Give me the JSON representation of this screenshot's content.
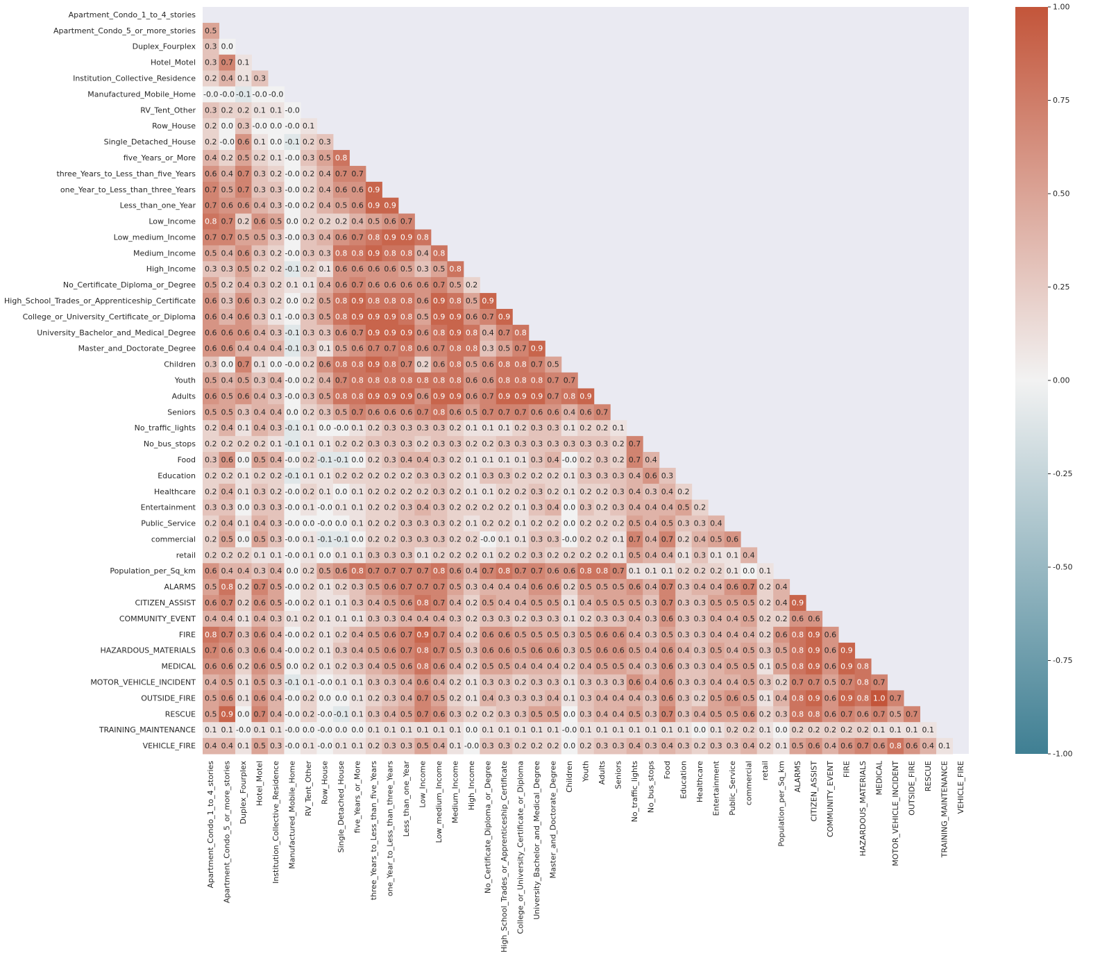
{
  "chart_data": {
    "type": "heatmap",
    "variables": [
      "Apartment_Condo_1_to_4_stories",
      "Apartment_Condo_5_or_more_stories",
      "Duplex_Fourplex",
      "Hotel_Motel",
      "Institution_Collective_Residence",
      "Manufactured_Mobile_Home",
      "RV_Tent_Other",
      "Row_House",
      "Single_Detached_House",
      "five_Years_or_More",
      "three_Years_to_Less_than_five_Years",
      "one_Year_to_Less_than_three_Years",
      "Less_than_one_Year",
      "Low_Income",
      "Low_medium_Income",
      "Medium_Income",
      "High_Income",
      "No_Certificate_Diploma_or_Degree",
      "High_School_Trades_or_Apprenticeship_Certificate",
      "College_or_University_Certificate_or_Diploma",
      "University_Bachelor_and_Medical_Degree",
      "Master_and_Doctorate_Degree",
      "Children",
      "Youth",
      "Adults",
      "Seniors",
      "No_traffic_lights",
      "No_bus_stops",
      "Food",
      "Education",
      "Healthcare",
      "Entertainment",
      "Public_Service",
      "commercial",
      "retail",
      "Population_per_Sq_km",
      "ALARMS",
      "CITIZEN_ASSIST",
      "COMMUNITY_EVENT",
      "FIRE",
      "HAZARDOUS_MATERIALS",
      "MEDICAL",
      "MOTOR_VEHICLE_INCIDENT",
      "OUTSIDE_FIRE",
      "RESCUE",
      "TRAINING_MAINTENANCE",
      "VEHICLE_FIRE"
    ],
    "rows": [
      [],
      [
        "0.5"
      ],
      [
        "0.3",
        "0.0"
      ],
      [
        "0.3",
        "0.7",
        "0.1"
      ],
      [
        "0.2",
        "0.4",
        "0.1",
        "0.3"
      ],
      [
        "-0.0",
        "-0.0",
        "-0.1",
        "-0.0",
        "-0.0"
      ],
      [
        "0.3",
        "0.2",
        "0.2",
        "0.1",
        "0.1",
        "-0.0"
      ],
      [
        "0.2",
        "0.0",
        "0.3",
        "-0.0",
        "0.0",
        "-0.0",
        "0.1"
      ],
      [
        "0.2",
        "-0.0",
        "0.6",
        "0.1",
        "0.0",
        "-0.1",
        "0.2",
        "0.3"
      ],
      [
        "0.4",
        "0.2",
        "0.5",
        "0.2",
        "0.1",
        "-0.0",
        "0.3",
        "0.5",
        "0.8"
      ],
      [
        "0.6",
        "0.4",
        "0.7",
        "0.3",
        "0.2",
        "-0.0",
        "0.2",
        "0.4",
        "0.7",
        "0.7"
      ],
      [
        "0.7",
        "0.5",
        "0.7",
        "0.3",
        "0.3",
        "-0.0",
        "0.2",
        "0.4",
        "0.6",
        "0.6",
        "0.9"
      ],
      [
        "0.7",
        "0.6",
        "0.6",
        "0.4",
        "0.3",
        "-0.0",
        "0.2",
        "0.4",
        "0.5",
        "0.6",
        "0.9",
        "0.9"
      ],
      [
        "0.8",
        "0.7",
        "0.2",
        "0.6",
        "0.5",
        "0.0",
        "0.2",
        "0.2",
        "0.2",
        "0.4",
        "0.5",
        "0.6",
        "0.7"
      ],
      [
        "0.7",
        "0.7",
        "0.5",
        "0.5",
        "0.3",
        "-0.0",
        "0.3",
        "0.4",
        "0.6",
        "0.7",
        "0.8",
        "0.9",
        "0.9",
        "0.8"
      ],
      [
        "0.5",
        "0.4",
        "0.6",
        "0.3",
        "0.2",
        "-0.0",
        "0.3",
        "0.3",
        "0.8",
        "0.8",
        "0.9",
        "0.8",
        "0.8",
        "0.4",
        "0.8"
      ],
      [
        "0.3",
        "0.3",
        "0.5",
        "0.2",
        "0.2",
        "-0.1",
        "0.2",
        "0.1",
        "0.6",
        "0.6",
        "0.6",
        "0.6",
        "0.5",
        "0.3",
        "0.5",
        "0.8"
      ],
      [
        "0.5",
        "0.2",
        "0.4",
        "0.3",
        "0.2",
        "0.1",
        "0.1",
        "0.4",
        "0.6",
        "0.7",
        "0.6",
        "0.6",
        "0.6",
        "0.6",
        "0.7",
        "0.5",
        "0.2"
      ],
      [
        "0.6",
        "0.3",
        "0.6",
        "0.3",
        "0.2",
        "0.0",
        "0.2",
        "0.5",
        "0.8",
        "0.9",
        "0.8",
        "0.8",
        "0.8",
        "0.6",
        "0.9",
        "0.8",
        "0.5",
        "0.9"
      ],
      [
        "0.6",
        "0.4",
        "0.6",
        "0.3",
        "0.1",
        "-0.0",
        "0.3",
        "0.5",
        "0.8",
        "0.9",
        "0.9",
        "0.9",
        "0.8",
        "0.5",
        "0.9",
        "0.9",
        "0.6",
        "0.7",
        "0.9"
      ],
      [
        "0.6",
        "0.6",
        "0.6",
        "0.4",
        "0.3",
        "-0.1",
        "0.3",
        "0.3",
        "0.6",
        "0.7",
        "0.9",
        "0.9",
        "0.9",
        "0.6",
        "0.8",
        "0.9",
        "0.8",
        "0.4",
        "0.7",
        "0.8"
      ],
      [
        "0.6",
        "0.6",
        "0.4",
        "0.4",
        "0.4",
        "-0.1",
        "0.3",
        "0.1",
        "0.5",
        "0.6",
        "0.7",
        "0.7",
        "0.8",
        "0.6",
        "0.7",
        "0.8",
        "0.8",
        "0.3",
        "0.5",
        "0.7",
        "0.9"
      ],
      [
        "0.3",
        "0.0",
        "0.7",
        "0.1",
        "0.0",
        "-0.0",
        "0.2",
        "0.6",
        "0.8",
        "0.8",
        "0.9",
        "0.8",
        "0.7",
        "0.2",
        "0.6",
        "0.8",
        "0.5",
        "0.6",
        "0.8",
        "0.8",
        "0.7",
        "0.5"
      ],
      [
        "0.5",
        "0.4",
        "0.5",
        "0.3",
        "0.4",
        "-0.0",
        "0.2",
        "0.4",
        "0.7",
        "0.8",
        "0.8",
        "0.8",
        "0.8",
        "0.8",
        "0.8",
        "0.8",
        "0.6",
        "0.6",
        "0.8",
        "0.8",
        "0.8",
        "0.7",
        "0.7"
      ],
      [
        "0.6",
        "0.5",
        "0.6",
        "0.4",
        "0.3",
        "-0.0",
        "0.3",
        "0.5",
        "0.8",
        "0.8",
        "0.9",
        "0.9",
        "0.9",
        "0.6",
        "0.9",
        "0.9",
        "0.6",
        "0.7",
        "0.9",
        "0.9",
        "0.9",
        "0.7",
        "0.8",
        "0.9"
      ],
      [
        "0.5",
        "0.5",
        "0.3",
        "0.4",
        "0.4",
        "0.0",
        "0.2",
        "0.3",
        "0.5",
        "0.7",
        "0.6",
        "0.6",
        "0.6",
        "0.7",
        "0.8",
        "0.6",
        "0.5",
        "0.7",
        "0.7",
        "0.7",
        "0.6",
        "0.6",
        "0.4",
        "0.6",
        "0.7"
      ],
      [
        "0.2",
        "0.4",
        "0.1",
        "0.4",
        "0.3",
        "-0.1",
        "0.1",
        "0.0",
        "-0.0",
        "0.1",
        "0.2",
        "0.3",
        "0.3",
        "0.3",
        "0.3",
        "0.2",
        "0.1",
        "0.1",
        "0.1",
        "0.2",
        "0.3",
        "0.3",
        "0.1",
        "0.2",
        "0.2",
        "0.1"
      ],
      [
        "0.2",
        "0.2",
        "0.2",
        "0.2",
        "0.1",
        "-0.1",
        "0.1",
        "0.1",
        "0.2",
        "0.2",
        "0.3",
        "0.3",
        "0.3",
        "0.2",
        "0.3",
        "0.3",
        "0.2",
        "0.2",
        "0.3",
        "0.3",
        "0.3",
        "0.3",
        "0.3",
        "0.3",
        "0.3",
        "0.2",
        "0.7"
      ],
      [
        "0.3",
        "0.6",
        "0.0",
        "0.5",
        "0.4",
        "-0.0",
        "0.2",
        "-0.1",
        "-0.1",
        "0.0",
        "0.2",
        "0.3",
        "0.4",
        "0.4",
        "0.3",
        "0.2",
        "0.1",
        "0.1",
        "0.1",
        "0.1",
        "0.3",
        "0.4",
        "-0.0",
        "0.2",
        "0.3",
        "0.2",
        "0.7",
        "0.4"
      ],
      [
        "0.2",
        "0.2",
        "0.1",
        "0.2",
        "0.2",
        "-0.1",
        "0.1",
        "0.1",
        "0.2",
        "0.2",
        "0.2",
        "0.2",
        "0.2",
        "0.3",
        "0.3",
        "0.2",
        "0.1",
        "0.3",
        "0.3",
        "0.2",
        "0.2",
        "0.2",
        "0.1",
        "0.3",
        "0.3",
        "0.3",
        "0.4",
        "0.6",
        "0.3"
      ],
      [
        "0.2",
        "0.4",
        "0.1",
        "0.3",
        "0.2",
        "-0.0",
        "0.2",
        "0.1",
        "0.0",
        "0.1",
        "0.2",
        "0.2",
        "0.2",
        "0.2",
        "0.3",
        "0.2",
        "0.1",
        "0.1",
        "0.2",
        "0.2",
        "0.3",
        "0.2",
        "0.1",
        "0.2",
        "0.2",
        "0.3",
        "0.4",
        "0.3",
        "0.4",
        "0.2"
      ],
      [
        "0.3",
        "0.3",
        "0.0",
        "0.3",
        "0.3",
        "-0.0",
        "0.1",
        "-0.0",
        "0.1",
        "0.1",
        "0.2",
        "0.2",
        "0.3",
        "0.4",
        "0.3",
        "0.2",
        "0.2",
        "0.2",
        "0.2",
        "0.1",
        "0.3",
        "0.4",
        "0.0",
        "0.3",
        "0.2",
        "0.3",
        "0.4",
        "0.4",
        "0.4",
        "0.5",
        "0.2"
      ],
      [
        "0.2",
        "0.4",
        "0.1",
        "0.4",
        "0.3",
        "-0.0",
        "0.0",
        "-0.0",
        "0.0",
        "0.1",
        "0.2",
        "0.2",
        "0.3",
        "0.3",
        "0.3",
        "0.2",
        "0.1",
        "0.2",
        "0.2",
        "0.1",
        "0.2",
        "0.2",
        "0.0",
        "0.2",
        "0.2",
        "0.2",
        "0.5",
        "0.4",
        "0.5",
        "0.3",
        "0.3",
        "0.4"
      ],
      [
        "0.2",
        "0.5",
        "0.0",
        "0.5",
        "0.3",
        "-0.0",
        "0.1",
        "-0.1",
        "-0.1",
        "0.0",
        "0.2",
        "0.2",
        "0.3",
        "0.3",
        "0.3",
        "0.2",
        "0.2",
        "-0.0",
        "0.1",
        "0.1",
        "0.3",
        "0.3",
        "-0.0",
        "0.2",
        "0.2",
        "0.1",
        "0.7",
        "0.4",
        "0.7",
        "0.2",
        "0.4",
        "0.5",
        "0.6"
      ],
      [
        "0.2",
        "0.2",
        "0.2",
        "0.1",
        "0.1",
        "-0.0",
        "0.1",
        "0.0",
        "0.1",
        "0.1",
        "0.3",
        "0.3",
        "0.3",
        "0.1",
        "0.2",
        "0.2",
        "0.2",
        "0.1",
        "0.2",
        "0.2",
        "0.3",
        "0.2",
        "0.2",
        "0.2",
        "0.2",
        "0.1",
        "0.5",
        "0.4",
        "0.4",
        "0.1",
        "0.3",
        "0.1",
        "0.1",
        "0.4"
      ],
      [
        "0.6",
        "0.4",
        "0.4",
        "0.3",
        "0.4",
        "0.0",
        "0.2",
        "0.5",
        "0.6",
        "0.8",
        "0.7",
        "0.7",
        "0.7",
        "0.7",
        "0.8",
        "0.6",
        "0.4",
        "0.7",
        "0.8",
        "0.7",
        "0.7",
        "0.6",
        "0.6",
        "0.8",
        "0.8",
        "0.7",
        "0.1",
        "0.1",
        "0.1",
        "0.2",
        "0.2",
        "0.2",
        "0.1",
        "0.0",
        "0.1"
      ],
      [
        "0.5",
        "0.8",
        "0.2",
        "0.7",
        "0.5",
        "-0.0",
        "0.2",
        "0.1",
        "0.2",
        "0.3",
        "0.5",
        "0.6",
        "0.7",
        "0.7",
        "0.7",
        "0.5",
        "0.3",
        "0.4",
        "0.4",
        "0.4",
        "0.6",
        "0.6",
        "0.2",
        "0.5",
        "0.5",
        "0.5",
        "0.6",
        "0.4",
        "0.7",
        "0.3",
        "0.4",
        "0.4",
        "0.6",
        "0.7",
        "0.2",
        "0.4"
      ],
      [
        "0.6",
        "0.7",
        "0.2",
        "0.6",
        "0.5",
        "-0.0",
        "0.2",
        "0.1",
        "0.1",
        "0.3",
        "0.4",
        "0.5",
        "0.6",
        "0.8",
        "0.7",
        "0.4",
        "0.2",
        "0.5",
        "0.4",
        "0.4",
        "0.5",
        "0.5",
        "0.1",
        "0.4",
        "0.5",
        "0.5",
        "0.5",
        "0.3",
        "0.7",
        "0.3",
        "0.3",
        "0.5",
        "0.5",
        "0.5",
        "0.2",
        "0.4",
        "0.9"
      ],
      [
        "0.4",
        "0.4",
        "0.1",
        "0.4",
        "0.3",
        "0.1",
        "0.2",
        "0.1",
        "0.1",
        "0.1",
        "0.3",
        "0.3",
        "0.4",
        "0.4",
        "0.4",
        "0.3",
        "0.2",
        "0.3",
        "0.3",
        "0.2",
        "0.3",
        "0.3",
        "0.1",
        "0.2",
        "0.3",
        "0.3",
        "0.4",
        "0.3",
        "0.6",
        "0.3",
        "0.3",
        "0.4",
        "0.4",
        "0.5",
        "0.2",
        "0.2",
        "0.6",
        "0.6"
      ],
      [
        "0.8",
        "0.7",
        "0.3",
        "0.6",
        "0.4",
        "-0.0",
        "0.2",
        "0.1",
        "0.2",
        "0.4",
        "0.5",
        "0.6",
        "0.7",
        "0.9",
        "0.7",
        "0.4",
        "0.2",
        "0.6",
        "0.6",
        "0.5",
        "0.5",
        "0.5",
        "0.3",
        "0.5",
        "0.6",
        "0.6",
        "0.4",
        "0.3",
        "0.5",
        "0.3",
        "0.3",
        "0.4",
        "0.4",
        "0.4",
        "0.2",
        "0.6",
        "0.8",
        "0.9",
        "0.6"
      ],
      [
        "0.7",
        "0.6",
        "0.3",
        "0.6",
        "0.4",
        "-0.0",
        "0.2",
        "0.1",
        "0.3",
        "0.4",
        "0.5",
        "0.6",
        "0.7",
        "0.8",
        "0.7",
        "0.5",
        "0.3",
        "0.6",
        "0.6",
        "0.5",
        "0.6",
        "0.6",
        "0.3",
        "0.5",
        "0.6",
        "0.6",
        "0.5",
        "0.4",
        "0.6",
        "0.4",
        "0.3",
        "0.5",
        "0.4",
        "0.5",
        "0.3",
        "0.5",
        "0.8",
        "0.9",
        "0.6",
        "0.9"
      ],
      [
        "0.6",
        "0.6",
        "0.2",
        "0.6",
        "0.5",
        "0.0",
        "0.2",
        "0.1",
        "0.2",
        "0.3",
        "0.4",
        "0.5",
        "0.6",
        "0.8",
        "0.6",
        "0.4",
        "0.2",
        "0.5",
        "0.5",
        "0.4",
        "0.4",
        "0.4",
        "0.2",
        "0.4",
        "0.5",
        "0.5",
        "0.4",
        "0.3",
        "0.6",
        "0.3",
        "0.3",
        "0.4",
        "0.5",
        "0.5",
        "0.1",
        "0.5",
        "0.8",
        "0.9",
        "0.6",
        "0.9",
        "0.8"
      ],
      [
        "0.4",
        "0.5",
        "0.1",
        "0.5",
        "0.3",
        "-0.1",
        "0.1",
        "-0.0",
        "0.1",
        "0.1",
        "0.3",
        "0.3",
        "0.4",
        "0.6",
        "0.4",
        "0.2",
        "0.1",
        "0.3",
        "0.3",
        "0.2",
        "0.3",
        "0.3",
        "0.1",
        "0.3",
        "0.3",
        "0.3",
        "0.6",
        "0.4",
        "0.6",
        "0.3",
        "0.3",
        "0.4",
        "0.4",
        "0.5",
        "0.3",
        "0.2",
        "0.7",
        "0.7",
        "0.5",
        "0.7",
        "0.8",
        "0.7"
      ],
      [
        "0.5",
        "0.6",
        "0.1",
        "0.6",
        "0.4",
        "-0.0",
        "0.2",
        "0.0",
        "0.0",
        "0.1",
        "0.2",
        "0.3",
        "0.4",
        "0.7",
        "0.5",
        "0.2",
        "0.1",
        "0.4",
        "0.3",
        "0.3",
        "0.3",
        "0.4",
        "0.1",
        "0.3",
        "0.4",
        "0.4",
        "0.4",
        "0.3",
        "0.6",
        "0.3",
        "0.2",
        "0.5",
        "0.6",
        "0.5",
        "0.1",
        "0.4",
        "0.8",
        "0.9",
        "0.6",
        "0.9",
        "0.8",
        "1.0",
        "0.7"
      ],
      [
        "0.5",
        "0.9",
        "0.0",
        "0.7",
        "0.4",
        "-0.0",
        "0.2",
        "-0.0",
        "-0.1",
        "0.1",
        "0.3",
        "0.4",
        "0.5",
        "0.7",
        "0.6",
        "0.3",
        "0.2",
        "0.2",
        "0.3",
        "0.3",
        "0.5",
        "0.5",
        "0.0",
        "0.3",
        "0.4",
        "0.4",
        "0.5",
        "0.3",
        "0.7",
        "0.3",
        "0.4",
        "0.5",
        "0.5",
        "0.6",
        "0.2",
        "0.3",
        "0.8",
        "0.8",
        "0.6",
        "0.7",
        "0.6",
        "0.7",
        "0.5",
        "0.7"
      ],
      [
        "0.1",
        "0.1",
        "-0.0",
        "0.1",
        "0.1",
        "-0.0",
        "0.0",
        "-0.0",
        "0.0",
        "0.0",
        "0.1",
        "0.1",
        "0.1",
        "0.1",
        "0.1",
        "0.1",
        "0.0",
        "0.1",
        "0.1",
        "0.1",
        "0.1",
        "0.1",
        "-0.0",
        "0.1",
        "0.1",
        "0.1",
        "0.1",
        "0.1",
        "0.1",
        "0.1",
        "0.0",
        "0.1",
        "0.2",
        "0.2",
        "0.1",
        "0.0",
        "0.2",
        "0.2",
        "0.2",
        "0.2",
        "0.2",
        "0.1",
        "0.1",
        "0.1",
        "0.1"
      ],
      [
        "0.4",
        "0.4",
        "0.1",
        "0.5",
        "0.3",
        "-0.0",
        "0.1",
        "-0.0",
        "0.1",
        "0.1",
        "0.2",
        "0.3",
        "0.3",
        "0.5",
        "0.4",
        "0.1",
        "-0.0",
        "0.3",
        "0.3",
        "0.2",
        "0.2",
        "0.2",
        "0.0",
        "0.2",
        "0.3",
        "0.3",
        "0.4",
        "0.3",
        "0.4",
        "0.3",
        "0.2",
        "0.3",
        "0.3",
        "0.4",
        "0.2",
        "0.1",
        "0.5",
        "0.6",
        "0.4",
        "0.6",
        "0.7",
        "0.6",
        "0.8",
        "0.6",
        "0.4",
        "0.1"
      ]
    ],
    "vmin": -1.0,
    "vmax": 1.0,
    "colorbar_ticks": [
      "-1.00",
      "-0.75",
      "-0.50",
      "-0.25",
      "0.00",
      "0.25",
      "0.50",
      "0.75",
      "1.00"
    ],
    "colorbar_tick_values": [
      -1.0,
      -0.75,
      -0.5,
      -0.25,
      0.0,
      0.25,
      0.5,
      0.75,
      1.0
    ],
    "masked_upper_triangle": true,
    "colors": {
      "negative": "#3f7f93",
      "center": "#f2f2f2",
      "positive": "#c3553a",
      "mask_background": "#eaeaf2",
      "text_dark": "#262626",
      "text_light": "#ffffff"
    }
  }
}
